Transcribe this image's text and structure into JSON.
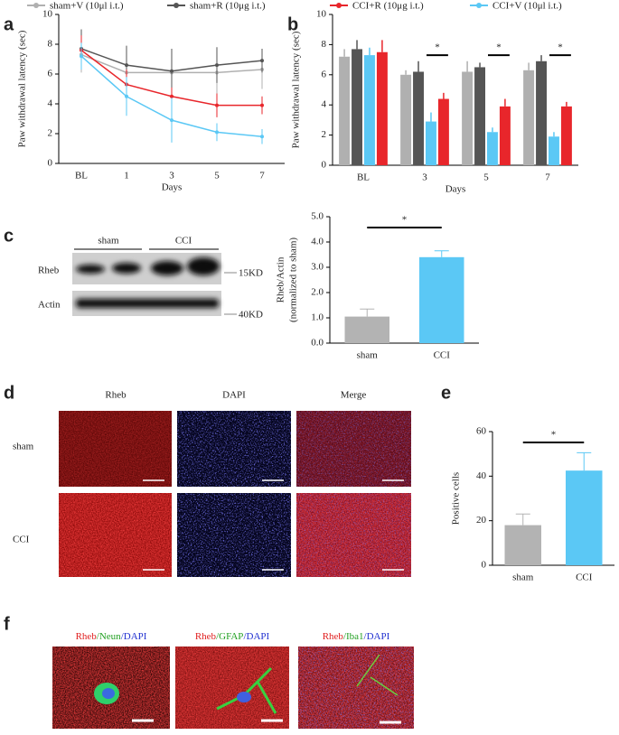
{
  "panels": [
    "a",
    "b",
    "c",
    "d",
    "e",
    "f"
  ],
  "chart_data": [
    {
      "type": "line",
      "categories": [
        "BL",
        "1",
        "3",
        "5",
        "7"
      ],
      "x_label": "Days",
      "y_label": "Paw withdrawal latency (sec)",
      "ylim": [
        0,
        10
      ],
      "yticks": [
        0,
        2,
        4,
        6,
        8,
        10
      ],
      "series": [
        {
          "name": "sham+V (10μl i.t.)",
          "color": "#b0b0b0",
          "values": [
            7.3,
            6.1,
            6.1,
            6.1,
            6.3
          ],
          "errors": [
            1.2,
            1.2,
            1.5,
            1.6,
            1.3
          ]
        },
        {
          "name": "sham+R (10μg i.t.)",
          "color": "#555555",
          "values": [
            7.7,
            6.6,
            6.2,
            6.6,
            6.9
          ],
          "errors": [
            1.3,
            1.3,
            1.5,
            1.2,
            0.8
          ]
        },
        {
          "name": "CCI+R (10μg i.t.)",
          "color": "#e8262b",
          "values": [
            7.6,
            5.3,
            4.5,
            3.9,
            3.9
          ],
          "errors": [
            1.0,
            1.0,
            0.6,
            0.8,
            0.6
          ]
        },
        {
          "name": "CCI+V (10μl i.t.)",
          "color": "#5bc8f5",
          "values": [
            7.2,
            4.5,
            2.9,
            2.1,
            1.8
          ],
          "errors": [
            0.9,
            1.3,
            1.5,
            0.6,
            0.5
          ]
        }
      ]
    },
    {
      "type": "bar",
      "categories": [
        "BL",
        "3",
        "5",
        "7"
      ],
      "x_label": "Days",
      "y_label": "Paw withdrawal latency (sec)",
      "ylim": [
        0,
        10
      ],
      "yticks": [
        0,
        2,
        4,
        6,
        8,
        10
      ],
      "series": [
        {
          "color": "#b0b0b0",
          "values": [
            7.2,
            6.0,
            6.2,
            6.3
          ],
          "errors": [
            0.5,
            0.3,
            0.7,
            0.5
          ]
        },
        {
          "color": "#555555",
          "values": [
            7.7,
            6.2,
            6.5,
            6.9
          ],
          "errors": [
            0.6,
            0.7,
            0.3,
            0.4
          ]
        },
        {
          "color": "#5bc8f5",
          "values": [
            7.3,
            2.9,
            2.2,
            1.9
          ],
          "errors": [
            0.5,
            0.6,
            0.3,
            0.3
          ]
        },
        {
          "color": "#e8262b",
          "values": [
            7.5,
            4.4,
            3.9,
            3.9
          ],
          "errors": [
            0.8,
            0.4,
            0.5,
            0.3
          ]
        }
      ],
      "annotations": [
        "*",
        "*",
        "*"
      ]
    },
    {
      "type": "bar",
      "categories": [
        "sham",
        "CCI"
      ],
      "values": [
        1.05,
        3.4
      ],
      "errors": [
        0.3,
        0.25
      ],
      "colors": [
        "#b3b3b3",
        "#5bc8f5"
      ],
      "y_label": [
        "Rheb/Actin",
        "(normalized to sham)"
      ],
      "ylim": [
        0,
        5
      ],
      "yticks": [
        {
          "value": 0,
          "label": "0.0"
        },
        {
          "value": 1,
          "label": "1.0"
        },
        {
          "value": 2,
          "label": "2.0"
        },
        {
          "value": 3,
          "label": "3.0"
        },
        {
          "value": 4,
          "label": "4.0"
        },
        {
          "value": 5,
          "label": "5.0"
        }
      ],
      "annotations": [
        "*"
      ]
    },
    {
      "type": "bar",
      "categories": [
        "sham",
        "CCI"
      ],
      "values": [
        18,
        42.5
      ],
      "errors": [
        5,
        8
      ],
      "colors": [
        "#b3b3b3",
        "#5bc8f5"
      ],
      "y_label": "Positive cells",
      "ylim": [
        0,
        60
      ],
      "yticks": [
        0,
        20,
        40,
        60
      ],
      "annotations": [
        "*"
      ]
    }
  ],
  "blot": {
    "groups": [
      "sham",
      "CCI"
    ],
    "rows": [
      "Rheb",
      "Actin"
    ],
    "sizes": [
      "15KD",
      "40KD"
    ]
  },
  "staining": {
    "columns": [
      "Rheb",
      "DAPI",
      "Merge"
    ],
    "rows": [
      "sham",
      "CCI"
    ]
  },
  "cells": {
    "colors": [
      "#e02020",
      "#22a022",
      "#2030d0"
    ],
    "labels": [
      [
        "Rheb",
        "/Neun",
        "/DAPI"
      ],
      [
        "Rheb",
        "/GFAP",
        "/DAPI"
      ],
      [
        "Rheb",
        "/Iba1",
        "/DAPI"
      ]
    ]
  }
}
